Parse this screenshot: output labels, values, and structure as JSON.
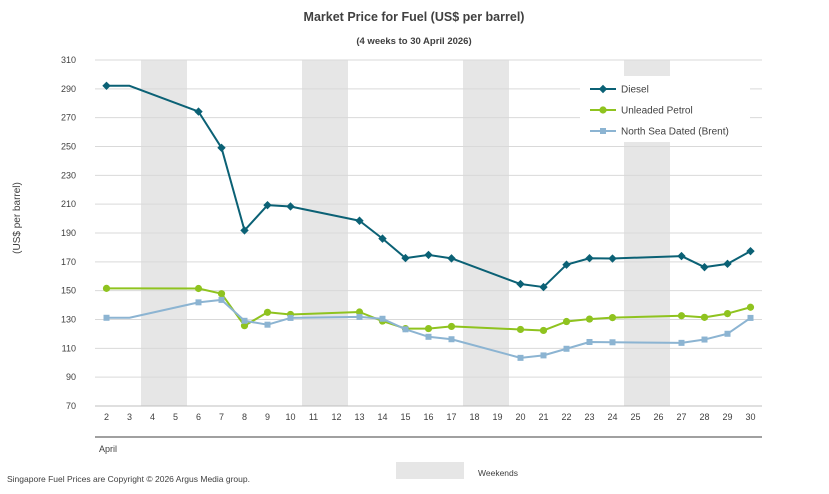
{
  "chart_data": {
    "type": "line",
    "title": "Market Price for Fuel (US$ per barrel)",
    "subtitle": "(4 weeks to 30 April 2026)",
    "ylabel": "(US$ per barrel)",
    "xlabel": "",
    "month_label": "April",
    "ylim": [
      70,
      310
    ],
    "yticks": [
      70,
      90,
      110,
      130,
      150,
      170,
      190,
      210,
      230,
      250,
      270,
      290,
      310
    ],
    "x": [
      2,
      3,
      4,
      5,
      6,
      7,
      8,
      9,
      10,
      11,
      12,
      13,
      14,
      15,
      16,
      17,
      18,
      19,
      20,
      21,
      22,
      23,
      24,
      25,
      26,
      27,
      28,
      29,
      30
    ],
    "weekends": [
      [
        4,
        5
      ],
      [
        11,
        12
      ],
      [
        18,
        19
      ],
      [
        25,
        26
      ]
    ],
    "weekend_label": "Weekends",
    "grid": true,
    "legend_position": "top-right",
    "series": [
      {
        "name": "Diesel",
        "color": "#0b6175",
        "marker": "diamond",
        "values": [
          292.1,
          292.1,
          null,
          null,
          274.2,
          249.1,
          191.8,
          209.3,
          208.4,
          null,
          null,
          198.5,
          186.1,
          172.6,
          174.8,
          172.4,
          null,
          null,
          154.6,
          152.5,
          168.0,
          172.5,
          172.3,
          null,
          null,
          174.0,
          166.3,
          168.6,
          177.4
        ]
      },
      {
        "name": "Unleaded Petrol",
        "color": "#8fc31f",
        "marker": "circle",
        "values": [
          151.6,
          151.6,
          null,
          null,
          151.5,
          147.9,
          125.7,
          135.0,
          133.5,
          null,
          null,
          135.2,
          128.9,
          123.7,
          123.7,
          125.2,
          null,
          null,
          123.1,
          122.4,
          128.6,
          130.3,
          131.3,
          null,
          null,
          132.6,
          131.5,
          134.1,
          138.5
        ]
      },
      {
        "name": "North Sea Dated (Brent)",
        "color": "#8cb4d2",
        "marker": "square",
        "values": [
          131.2,
          131.2,
          null,
          null,
          141.9,
          143.6,
          129.1,
          126.4,
          131.1,
          null,
          null,
          131.8,
          130.5,
          123.2,
          118.0,
          116.3,
          null,
          null,
          103.4,
          105.1,
          109.7,
          114.4,
          114.2,
          null,
          null,
          113.8,
          116.1,
          120.1,
          131.1
        ]
      }
    ]
  },
  "footer": {
    "copyright": "Singapore Fuel Prices are Copyright © 2026 Argus Media group."
  }
}
